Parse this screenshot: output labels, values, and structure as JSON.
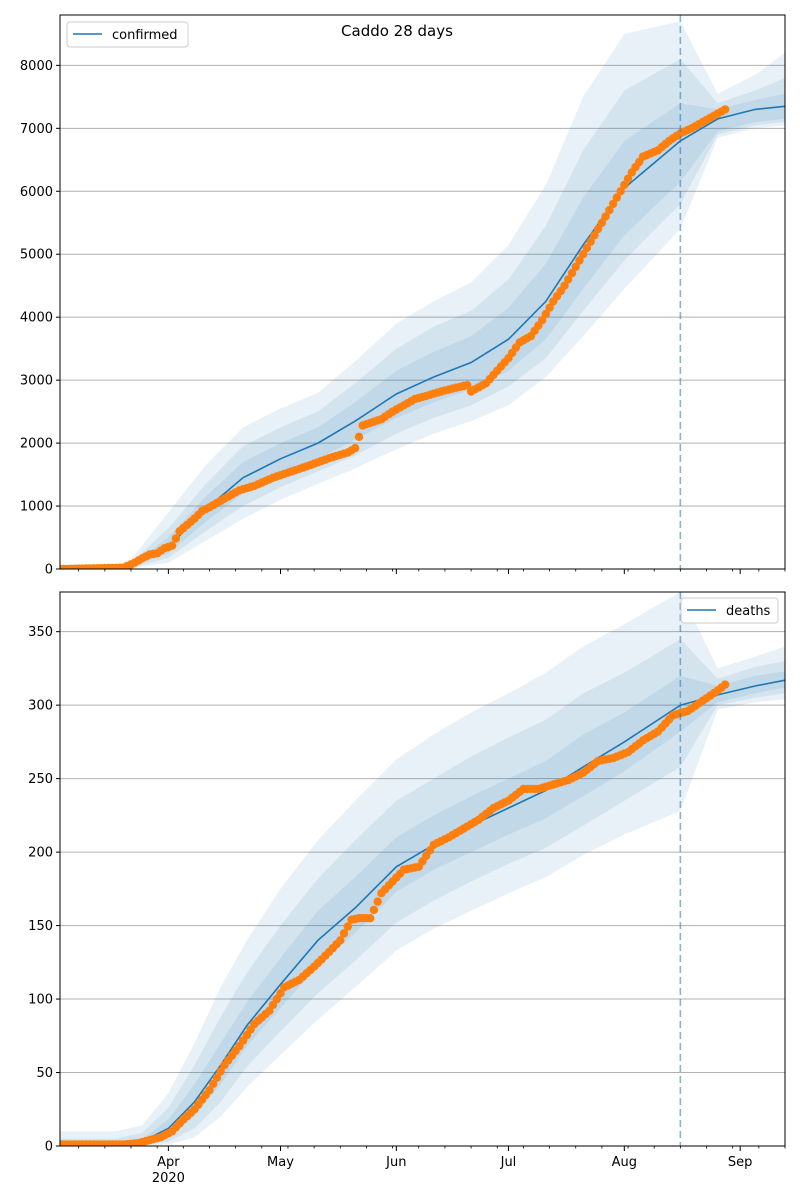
{
  "figure_title": "Caddo 28 days",
  "chart_data": [
    {
      "type": "line",
      "legend": {
        "label": "confirmed",
        "placement": "upper left"
      },
      "x_range": [
        "2020-03-03",
        "2020-09-13"
      ],
      "x_ticks": [
        {
          "date": "2020-04-01",
          "label": "Apr",
          "sublabel": "2020"
        },
        {
          "date": "2020-05-01",
          "label": "May"
        },
        {
          "date": "2020-06-01",
          "label": "Jun"
        },
        {
          "date": "2020-07-01",
          "label": "Jul"
        },
        {
          "date": "2020-08-01",
          "label": "Aug"
        },
        {
          "date": "2020-09-01",
          "label": "Sep"
        }
      ],
      "ylim": [
        0,
        8800
      ],
      "y_ticks": [
        0,
        1000,
        2000,
        3000,
        4000,
        5000,
        6000,
        7000,
        8000
      ],
      "grid": "horizontal",
      "forecast_start": "2020-08-16",
      "colors": {
        "model": "#1f77b4",
        "observed": "#ff7f0e",
        "band": "#1f77b4"
      },
      "model": {
        "name": "confirmed",
        "x": [
          "2020-03-03",
          "2020-03-15",
          "2020-03-22",
          "2020-04-01",
          "2020-04-11",
          "2020-04-21",
          "2020-05-01",
          "2020-05-11",
          "2020-05-21",
          "2020-06-01",
          "2020-06-11",
          "2020-06-21",
          "2020-07-01",
          "2020-07-11",
          "2020-07-21",
          "2020-08-01",
          "2020-08-16",
          "2020-08-26",
          "2020-09-05",
          "2020-09-13"
        ],
        "y": [
          0,
          10,
          50,
          350,
          950,
          1450,
          1750,
          2000,
          2350,
          2780,
          3050,
          3280,
          3650,
          4250,
          5150,
          6050,
          6800,
          7150,
          7300,
          7350
        ]
      },
      "bands": [
        {
          "label": "inner",
          "lower": [
            0,
            5,
            30,
            250,
            750,
            1200,
            1500,
            1750,
            2050,
            2400,
            2650,
            2850,
            3150,
            3650,
            4450,
            5300,
            6150,
            6950,
            7100,
            7150
          ],
          "upper": [
            0,
            15,
            70,
            500,
            1150,
            1700,
            2000,
            2250,
            2650,
            3150,
            3450,
            3700,
            4150,
            4850,
            5900,
            6800,
            7400,
            7300,
            7450,
            7550
          ]
        },
        {
          "label": "middle",
          "lower": [
            0,
            3,
            20,
            180,
            600,
            1000,
            1300,
            1550,
            1800,
            2150,
            2400,
            2600,
            2900,
            3350,
            4100,
            4900,
            5800,
            6900,
            7050,
            7100
          ],
          "upper": [
            0,
            20,
            100,
            650,
            1350,
            1950,
            2250,
            2500,
            2950,
            3500,
            3850,
            4100,
            4600,
            5450,
            6650,
            7600,
            8100,
            7400,
            7600,
            7800
          ]
        },
        {
          "label": "outer",
          "lower": [
            0,
            2,
            10,
            100,
            450,
            800,
            1100,
            1350,
            1600,
            1900,
            2150,
            2350,
            2600,
            3050,
            3700,
            4450,
            5400,
            6850,
            7000,
            7050
          ],
          "upper": [
            0,
            30,
            150,
            900,
            1650,
            2250,
            2550,
            2800,
            3300,
            3900,
            4250,
            4550,
            5150,
            6100,
            7500,
            8500,
            8700,
            7550,
            7850,
            8200
          ]
        }
      ],
      "observed": {
        "x": [
          "2020-03-03",
          "2020-03-20",
          "2020-03-23",
          "2020-03-25",
          "2020-03-27",
          "2020-03-29",
          "2020-03-31",
          "2020-04-02",
          "2020-04-04",
          "2020-04-06",
          "2020-04-08",
          "2020-04-10",
          "2020-04-12",
          "2020-04-14",
          "2020-04-17",
          "2020-04-20",
          "2020-04-24",
          "2020-04-29",
          "2020-05-04",
          "2020-05-09",
          "2020-05-14",
          "2020-05-19",
          "2020-05-21",
          "2020-05-23",
          "2020-05-25",
          "2020-05-28",
          "2020-05-31",
          "2020-06-03",
          "2020-06-06",
          "2020-06-09",
          "2020-06-13",
          "2020-06-17",
          "2020-06-20",
          "2020-06-21",
          "2020-06-25",
          "2020-06-28",
          "2020-07-01",
          "2020-07-04",
          "2020-07-07",
          "2020-07-10",
          "2020-07-13",
          "2020-07-16",
          "2020-07-19",
          "2020-07-22",
          "2020-07-25",
          "2020-07-28",
          "2020-07-31",
          "2020-08-03",
          "2020-08-06",
          "2020-08-10",
          "2020-08-13",
          "2020-08-16",
          "2020-08-19",
          "2020-08-22",
          "2020-08-25",
          "2020-08-28"
        ],
        "y": [
          0,
          20,
          100,
          170,
          230,
          250,
          330,
          370,
          600,
          700,
          800,
          920,
          980,
          1050,
          1150,
          1250,
          1320,
          1450,
          1550,
          1650,
          1760,
          1850,
          1920,
          2280,
          2320,
          2380,
          2500,
          2600,
          2700,
          2750,
          2820,
          2880,
          2920,
          2820,
          2950,
          3150,
          3350,
          3600,
          3700,
          3950,
          4250,
          4500,
          4800,
          5100,
          5400,
          5700,
          6000,
          6300,
          6550,
          6650,
          6800,
          6920,
          7000,
          7100,
          7200,
          7300
        ]
      }
    },
    {
      "type": "line",
      "legend": {
        "label": "deaths",
        "placement": "upper right"
      },
      "x_range": [
        "2020-03-03",
        "2020-09-13"
      ],
      "ylim": [
        0,
        377
      ],
      "y_ticks": [
        0,
        50,
        100,
        150,
        200,
        250,
        300,
        350
      ],
      "grid": "horizontal",
      "forecast_start": "2020-08-16",
      "model": {
        "name": "deaths",
        "x": [
          "2020-03-03",
          "2020-03-18",
          "2020-03-25",
          "2020-04-01",
          "2020-04-08",
          "2020-04-15",
          "2020-04-22",
          "2020-05-01",
          "2020-05-11",
          "2020-05-21",
          "2020-06-01",
          "2020-06-11",
          "2020-06-21",
          "2020-07-01",
          "2020-07-11",
          "2020-07-21",
          "2020-08-01",
          "2020-08-16",
          "2020-08-26",
          "2020-09-05",
          "2020-09-13"
        ],
        "y": [
          0,
          0,
          3,
          12,
          30,
          55,
          82,
          110,
          140,
          162,
          190,
          205,
          218,
          230,
          242,
          258,
          275,
          300,
          307,
          313,
          317
        ]
      },
      "bands": [
        {
          "label": "inner",
          "lower": [
            0,
            0,
            1,
            6,
            20,
            42,
            68,
            94,
            122,
            145,
            173,
            188,
            200,
            212,
            223,
            238,
            255,
            282,
            302,
            308,
            312
          ],
          "upper": [
            1,
            1,
            5,
            18,
            42,
            70,
            98,
            128,
            160,
            183,
            210,
            225,
            238,
            250,
            262,
            280,
            295,
            320,
            313,
            320,
            323
          ]
        },
        {
          "label": "middle",
          "lower": [
            0,
            0,
            0,
            3,
            12,
            30,
            54,
            78,
            104,
            126,
            152,
            167,
            180,
            192,
            203,
            218,
            235,
            258,
            300,
            305,
            308
          ],
          "upper": [
            5,
            5,
            9,
            26,
            55,
            88,
            118,
            150,
            182,
            208,
            235,
            250,
            265,
            278,
            290,
            308,
            322,
            345,
            318,
            326,
            330
          ]
        },
        {
          "label": "outer",
          "lower": [
            0,
            0,
            0,
            1,
            6,
            20,
            40,
            62,
            86,
            108,
            133,
            148,
            160,
            172,
            183,
            198,
            212,
            228,
            297,
            302,
            304
          ],
          "upper": [
            10,
            10,
            14,
            36,
            70,
            108,
            140,
            175,
            208,
            235,
            263,
            280,
            295,
            308,
            322,
            340,
            355,
            377,
            325,
            333,
            340
          ]
        }
      ],
      "observed": {
        "x": [
          "2020-03-03",
          "2020-03-20",
          "2020-03-24",
          "2020-03-27",
          "2020-03-30",
          "2020-04-02",
          "2020-04-05",
          "2020-04-08",
          "2020-04-12",
          "2020-04-16",
          "2020-04-20",
          "2020-04-24",
          "2020-04-28",
          "2020-05-02",
          "2020-05-06",
          "2020-05-10",
          "2020-05-14",
          "2020-05-17",
          "2020-05-20",
          "2020-05-22",
          "2020-05-25",
          "2020-05-28",
          "2020-05-31",
          "2020-06-03",
          "2020-06-07",
          "2020-06-11",
          "2020-06-15",
          "2020-06-19",
          "2020-06-23",
          "2020-06-27",
          "2020-07-01",
          "2020-07-05",
          "2020-07-09",
          "2020-07-13",
          "2020-07-17",
          "2020-07-21",
          "2020-07-25",
          "2020-07-29",
          "2020-08-02",
          "2020-08-06",
          "2020-08-10",
          "2020-08-14",
          "2020-08-18",
          "2020-08-22",
          "2020-08-26",
          "2020-08-28"
        ],
        "y": [
          1,
          1,
          2,
          4,
          6,
          10,
          18,
          25,
          38,
          55,
          68,
          83,
          92,
          108,
          113,
          122,
          132,
          140,
          154,
          155,
          155,
          172,
          180,
          188,
          190,
          205,
          210,
          216,
          222,
          230,
          235,
          243,
          243,
          246,
          249,
          254,
          262,
          264,
          268,
          276,
          282,
          293,
          296,
          303,
          310,
          314
        ]
      }
    }
  ]
}
